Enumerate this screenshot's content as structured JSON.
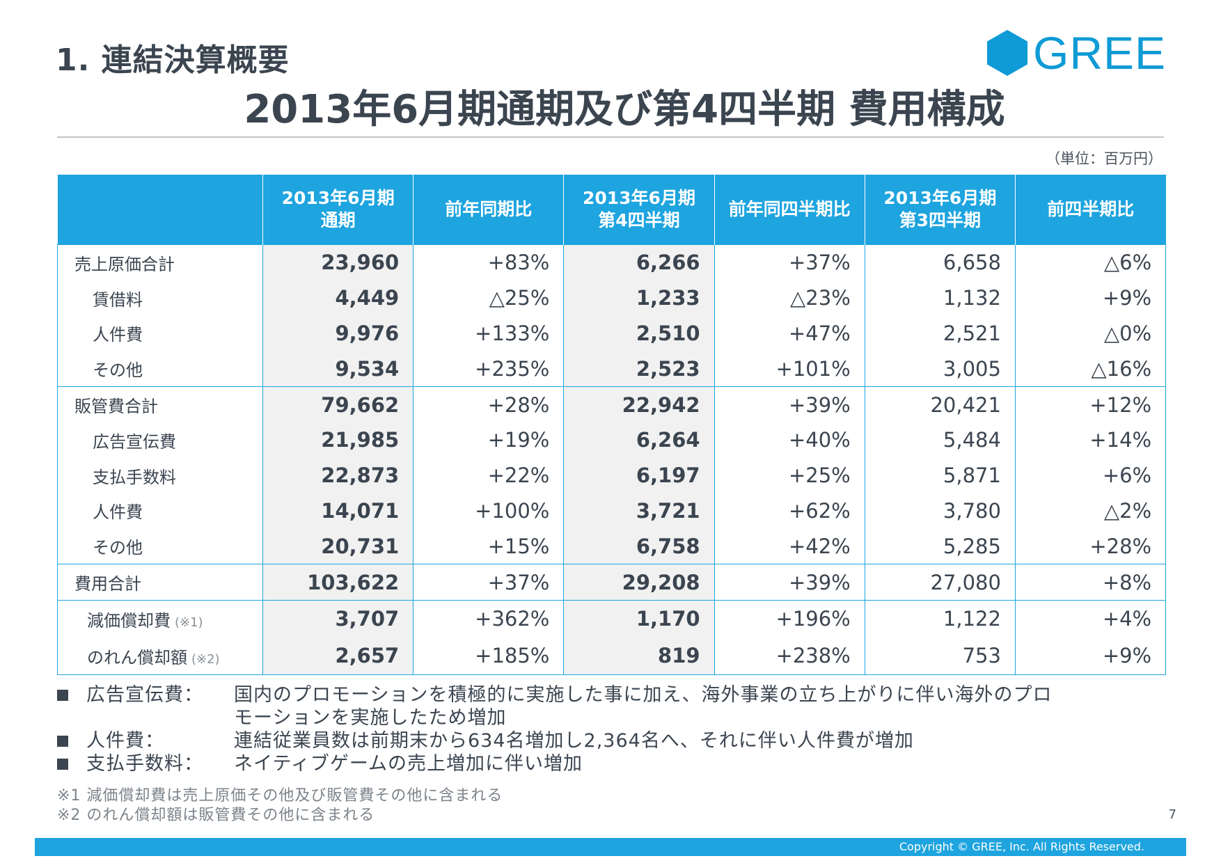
{
  "section_title": "1. 連結決算概要",
  "logo_text": "GREE",
  "main_title": "2013年6月期通期及び第4四半期 費用構成",
  "unit_note": "（単位：百万円）",
  "table": {
    "headers": [
      {
        "l1": "",
        "l2": ""
      },
      {
        "l1": "2013年6月期",
        "l2": "通期"
      },
      {
        "l1": "前年同期比",
        "l2": ""
      },
      {
        "l1": "2013年6月期",
        "l2": "第4四半期"
      },
      {
        "l1": "前年同四半期比",
        "l2": ""
      },
      {
        "l1": "2013年6月期",
        "l2": "第3四半期"
      },
      {
        "l1": "前四半期比",
        "l2": ""
      }
    ],
    "rows": [
      {
        "label": "売上原価合計",
        "ref": "",
        "cells": [
          "23,960",
          "+83%",
          "6,266",
          "+37%",
          "6,658",
          "△6%"
        ]
      },
      {
        "label": "賃借料",
        "ref": "",
        "cells": [
          "4,449",
          "△25%",
          "1,233",
          "△23%",
          "1,132",
          "+9%"
        ]
      },
      {
        "label": "人件費",
        "ref": "",
        "cells": [
          "9,976",
          "+133%",
          "2,510",
          "+47%",
          "2,521",
          "△0%"
        ]
      },
      {
        "label": "その他",
        "ref": "",
        "cells": [
          "9,534",
          "+235%",
          "2,523",
          "+101%",
          "3,005",
          "△16%"
        ]
      },
      {
        "label": "販管費合計",
        "ref": "",
        "cells": [
          "79,662",
          "+28%",
          "22,942",
          "+39%",
          "20,421",
          "+12%"
        ]
      },
      {
        "label": "広告宣伝費",
        "ref": "",
        "cells": [
          "21,985",
          "+19%",
          "6,264",
          "+40%",
          "5,484",
          "+14%"
        ]
      },
      {
        "label": "支払手数料",
        "ref": "",
        "cells": [
          "22,873",
          "+22%",
          "6,197",
          "+25%",
          "5,871",
          "+6%"
        ]
      },
      {
        "label": "人件費",
        "ref": "",
        "cells": [
          "14,071",
          "+100%",
          "3,721",
          "+62%",
          "3,780",
          "△2%"
        ]
      },
      {
        "label": "その他",
        "ref": "",
        "cells": [
          "20,731",
          "+15%",
          "6,758",
          "+42%",
          "5,285",
          "+28%"
        ]
      },
      {
        "label": "費用合計",
        "ref": "",
        "cells": [
          "103,622",
          "+37%",
          "29,208",
          "+39%",
          "27,080",
          "+8%"
        ]
      },
      {
        "label": "減価償却費",
        "ref": "(※1)",
        "cells": [
          "3,707",
          "+362%",
          "1,170",
          "+196%",
          "1,122",
          "+4%"
        ]
      },
      {
        "label": "のれん償却額",
        "ref": "(※2)",
        "cells": [
          "2,657",
          "+185%",
          "819",
          "+238%",
          "753",
          "+9%"
        ]
      }
    ]
  },
  "bullets": [
    {
      "key": "広告宣伝費：",
      "text1": "国内のプロモーションを積極的に実施した事に加え、海外事業の立ち上がりに伴い海外のプロ",
      "text2": "モーションを実施したため増加"
    },
    {
      "key": "人件費：",
      "text1": "連結従業員数は前期末から634名増加し2,364名へ、それに伴い人件費が増加",
      "text2": ""
    },
    {
      "key": "支払手数料：",
      "text1": "ネイティブゲームの売上増加に伴い増加",
      "text2": ""
    }
  ],
  "footnotes": [
    "※1 減価償却費は売上原価その他及び販管費その他に含まれる",
    "※2 のれん償却額は販管費その他に含まれる"
  ],
  "page_number": "7",
  "copyright": "Copyright © GREE, Inc. All Rights Reserved.",
  "colors": {
    "accent": "#1ea4df",
    "text": "#3b4550",
    "shade": "#f1f1f1"
  }
}
